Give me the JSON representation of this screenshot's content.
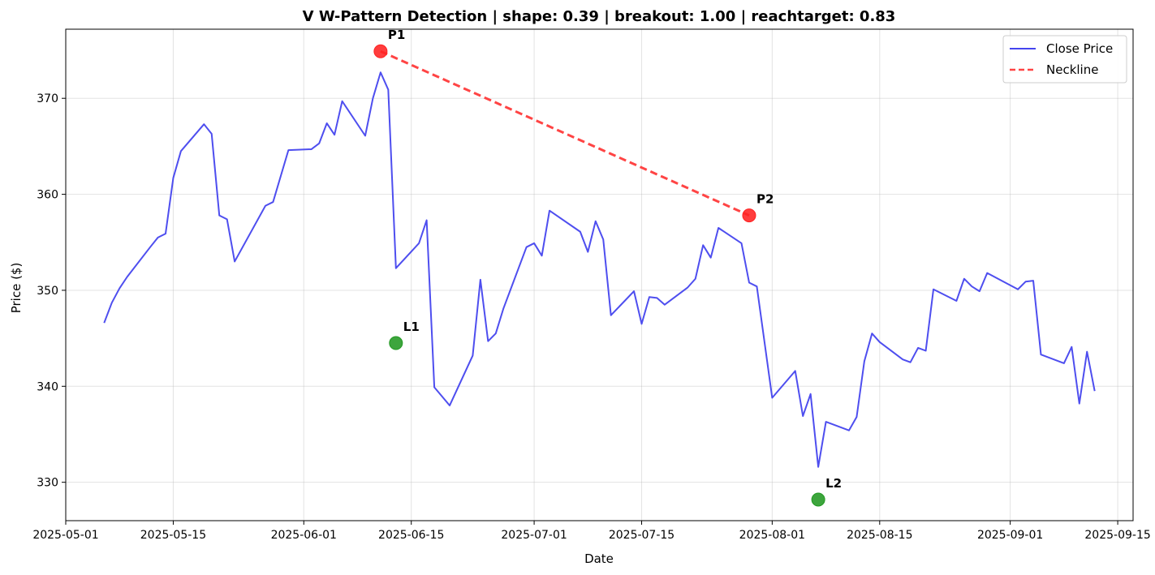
{
  "chart_data": {
    "type": "line",
    "title": "V W-Pattern Detection | shape: 0.39 | breakout: 1.00 | reachtarget: 0.83",
    "xlabel": "Date",
    "ylabel": "Price ($)",
    "xlim": [
      "2025-05-01",
      "2025-09-17"
    ],
    "ylim": [
      326,
      377.2
    ],
    "grid": true,
    "legend_position": "top-right",
    "x_ticks": [
      "2025-05-01",
      "2025-05-15",
      "2025-06-01",
      "2025-06-15",
      "2025-07-01",
      "2025-07-15",
      "2025-08-01",
      "2025-08-15",
      "2025-09-01",
      "2025-09-15"
    ],
    "y_ticks": [
      330,
      340,
      350,
      360,
      370
    ],
    "series": [
      {
        "name": "Close Price",
        "color": "#4444ee",
        "style": "solid",
        "points": [
          [
            "2025-05-06",
            346.6
          ],
          [
            "2025-05-07",
            348.7
          ],
          [
            "2025-05-08",
            350.2
          ],
          [
            "2025-05-09",
            351.4
          ],
          [
            "2025-05-12",
            354.5
          ],
          [
            "2025-05-13",
            355.5
          ],
          [
            "2025-05-14",
            355.9
          ],
          [
            "2025-05-15",
            361.7
          ],
          [
            "2025-05-16",
            364.5
          ],
          [
            "2025-05-19",
            367.3
          ],
          [
            "2025-05-20",
            366.3
          ],
          [
            "2025-05-21",
            357.8
          ],
          [
            "2025-05-22",
            357.4
          ],
          [
            "2025-05-23",
            353.0
          ],
          [
            "2025-05-27",
            358.8
          ],
          [
            "2025-05-28",
            359.2
          ],
          [
            "2025-05-30",
            364.6
          ],
          [
            "2025-06-02",
            364.7
          ],
          [
            "2025-06-03",
            365.3
          ],
          [
            "2025-06-04",
            367.4
          ],
          [
            "2025-06-05",
            366.2
          ],
          [
            "2025-06-06",
            369.7
          ],
          [
            "2025-06-09",
            366.1
          ],
          [
            "2025-06-10",
            370.0
          ],
          [
            "2025-06-11",
            372.7
          ],
          [
            "2025-06-12",
            370.9
          ],
          [
            "2025-06-13",
            352.3
          ],
          [
            "2025-06-16",
            354.9
          ],
          [
            "2025-06-17",
            357.3
          ],
          [
            "2025-06-18",
            339.9
          ],
          [
            "2025-06-20",
            338.0
          ],
          [
            "2025-06-23",
            343.2
          ],
          [
            "2025-06-24",
            351.1
          ],
          [
            "2025-06-25",
            344.7
          ],
          [
            "2025-06-26",
            345.5
          ],
          [
            "2025-06-27",
            348.1
          ],
          [
            "2025-06-30",
            354.5
          ],
          [
            "2025-07-01",
            354.9
          ],
          [
            "2025-07-02",
            353.6
          ],
          [
            "2025-07-03",
            358.3
          ],
          [
            "2025-07-07",
            356.1
          ],
          [
            "2025-07-08",
            354.0
          ],
          [
            "2025-07-09",
            357.2
          ],
          [
            "2025-07-10",
            355.3
          ],
          [
            "2025-07-11",
            347.4
          ],
          [
            "2025-07-14",
            349.9
          ],
          [
            "2025-07-15",
            346.5
          ],
          [
            "2025-07-16",
            349.3
          ],
          [
            "2025-07-17",
            349.2
          ],
          [
            "2025-07-18",
            348.5
          ],
          [
            "2025-07-21",
            350.3
          ],
          [
            "2025-07-22",
            351.2
          ],
          [
            "2025-07-23",
            354.7
          ],
          [
            "2025-07-24",
            353.4
          ],
          [
            "2025-07-25",
            356.5
          ],
          [
            "2025-07-28",
            354.9
          ],
          [
            "2025-07-29",
            350.8
          ],
          [
            "2025-07-30",
            350.4
          ],
          [
            "2025-08-01",
            338.8
          ],
          [
            "2025-08-04",
            341.6
          ],
          [
            "2025-08-05",
            336.9
          ],
          [
            "2025-08-06",
            339.2
          ],
          [
            "2025-08-07",
            331.6
          ],
          [
            "2025-08-08",
            336.3
          ],
          [
            "2025-08-11",
            335.4
          ],
          [
            "2025-08-12",
            336.8
          ],
          [
            "2025-08-13",
            342.6
          ],
          [
            "2025-08-14",
            345.5
          ],
          [
            "2025-08-15",
            344.6
          ],
          [
            "2025-08-18",
            342.8
          ],
          [
            "2025-08-19",
            342.5
          ],
          [
            "2025-08-20",
            344.0
          ],
          [
            "2025-08-21",
            343.7
          ],
          [
            "2025-08-22",
            350.1
          ],
          [
            "2025-08-25",
            348.9
          ],
          [
            "2025-08-26",
            351.2
          ],
          [
            "2025-08-27",
            350.4
          ],
          [
            "2025-08-28",
            349.9
          ],
          [
            "2025-08-29",
            351.8
          ],
          [
            "2025-09-02",
            350.1
          ],
          [
            "2025-09-03",
            350.9
          ],
          [
            "2025-09-04",
            351.0
          ],
          [
            "2025-09-05",
            343.3
          ],
          [
            "2025-09-08",
            342.4
          ],
          [
            "2025-09-09",
            344.1
          ],
          [
            "2025-09-10",
            338.2
          ],
          [
            "2025-09-11",
            343.6
          ],
          [
            "2025-09-12",
            339.5
          ]
        ]
      },
      {
        "name": "Neckline",
        "color": "#ff4444",
        "style": "dashed",
        "points": [
          [
            "2025-06-11",
            374.9
          ],
          [
            "2025-07-29",
            357.8
          ]
        ]
      }
    ],
    "markers": [
      {
        "label": "P1",
        "x": "2025-06-11",
        "y": 374.9,
        "color": "#ff2222"
      },
      {
        "label": "L1",
        "x": "2025-06-13",
        "y": 344.5,
        "color": "#229922"
      },
      {
        "label": "P2",
        "x": "2025-07-29",
        "y": 357.8,
        "color": "#ff2222"
      },
      {
        "label": "L2",
        "x": "2025-08-07",
        "y": 328.2,
        "color": "#229922"
      }
    ]
  }
}
